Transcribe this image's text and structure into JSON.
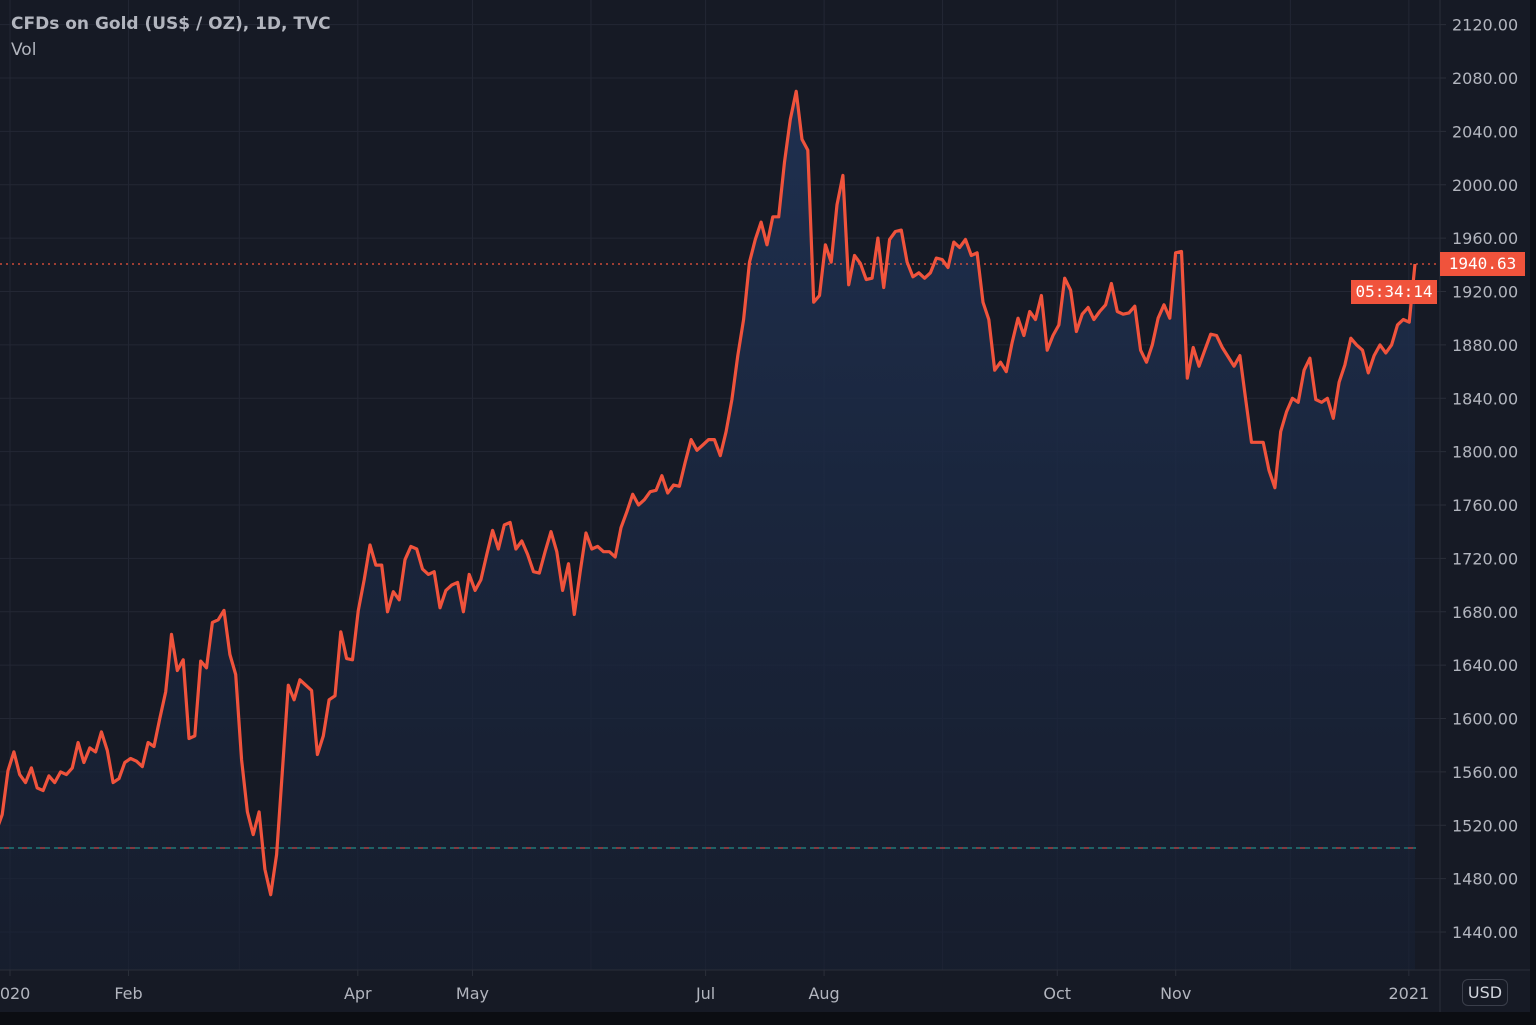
{
  "header": {
    "title": "CFDs on Gold (US$ / OZ), 1D, TVC",
    "indicator": "Vol",
    "currency_button": "USD"
  },
  "last_price": {
    "label": "1940.63",
    "countdown": "05:34:14"
  },
  "colors": {
    "line": "#f0533c",
    "background": "#161a25",
    "grid": "#232734",
    "text": "#b2b5be",
    "baseline_a": "#26a69a",
    "baseline_b": "#ef5350"
  },
  "chart_data": {
    "type": "area",
    "title": "CFDs on Gold (US$ / OZ), 1D, TVC",
    "x_range": [
      "2019-12-30",
      "2021-01-04"
    ],
    "x_ticks": [
      {
        "date": "2020-01-01",
        "label": "2020"
      },
      {
        "date": "2020-02-01",
        "label": "Feb"
      },
      {
        "date": "2020-04-01",
        "label": "Apr"
      },
      {
        "date": "2020-05-01",
        "label": "May"
      },
      {
        "date": "2020-07-01",
        "label": "Jul"
      },
      {
        "date": "2020-08-01",
        "label": "Aug"
      },
      {
        "date": "2020-10-01",
        "label": "Oct"
      },
      {
        "date": "2020-11-01",
        "label": "Nov"
      },
      {
        "date": "2021-01-01",
        "label": "2021"
      }
    ],
    "y_ticks": [
      "1440.00",
      "1480.00",
      "1520.00",
      "1560.00",
      "1600.00",
      "1640.00",
      "1680.00",
      "1720.00",
      "1760.00",
      "1800.00",
      "1840.00",
      "1880.00",
      "1920.00",
      "1960.00",
      "2000.00",
      "2040.00",
      "2080.00",
      "2120.00"
    ],
    "ylim": [
      1410,
      2135
    ],
    "y_axis_side": "right",
    "grid": true,
    "last_value": 1940.63,
    "baseline_value": 1503,
    "values": [
      1516,
      1528,
      1561,
      1575,
      1558,
      1552,
      1563,
      1548,
      1546,
      1557,
      1552,
      1560,
      1558,
      1563,
      1582,
      1567,
      1578,
      1575,
      1590,
      1576,
      1552,
      1555,
      1567,
      1570,
      1568,
      1564,
      1582,
      1579,
      1600,
      1620,
      1663,
      1636,
      1644,
      1585,
      1587,
      1643,
      1638,
      1672,
      1674,
      1681,
      1648,
      1633,
      1569,
      1530,
      1513,
      1530,
      1487,
      1468,
      1498,
      1561,
      1625,
      1614,
      1629,
      1625,
      1621,
      1573,
      1587,
      1614,
      1617,
      1665,
      1645,
      1644,
      1681,
      1704,
      1730,
      1715,
      1715,
      1680,
      1695,
      1689,
      1719,
      1729,
      1727,
      1712,
      1708,
      1710,
      1683,
      1696,
      1700,
      1702,
      1680,
      1708,
      1696,
      1704,
      1723,
      1741,
      1727,
      1745,
      1747,
      1727,
      1733,
      1723,
      1710,
      1709,
      1725,
      1740,
      1725,
      1696,
      1716,
      1678,
      1710,
      1739,
      1727,
      1729,
      1725,
      1725,
      1721,
      1743,
      1755,
      1768,
      1760,
      1764,
      1770,
      1771,
      1782,
      1769,
      1775,
      1774,
      1792,
      1809,
      1801,
      1805,
      1809,
      1809,
      1797,
      1815,
      1839,
      1872,
      1899,
      1942,
      1959,
      1972,
      1955,
      1976,
      1976,
      2017,
      2049,
      2070,
      2034,
      2026,
      1912,
      1917,
      1955,
      1942,
      1985,
      2007,
      1925,
      1947,
      1941,
      1929,
      1930,
      1960,
      1923,
      1959,
      1965,
      1966,
      1942,
      1931,
      1934,
      1930,
      1934,
      1945,
      1944,
      1938,
      1957,
      1953,
      1959,
      1947,
      1949,
      1912,
      1899,
      1861,
      1867,
      1860,
      1882,
      1900,
      1887,
      1905,
      1899,
      1917,
      1876,
      1887,
      1895,
      1930,
      1921,
      1890,
      1903,
      1908,
      1899,
      1905,
      1910,
      1926,
      1905,
      1903,
      1904,
      1909,
      1876,
      1867,
      1880,
      1900,
      1910,
      1900,
      1949,
      1950,
      1855,
      1878,
      1864,
      1876,
      1888,
      1887,
      1878,
      1871,
      1864,
      1872,
      1839,
      1807,
      1807,
      1807,
      1786,
      1773,
      1815,
      1830,
      1840,
      1837,
      1861,
      1870,
      1839,
      1837,
      1840,
      1825,
      1852,
      1865,
      1885,
      1880,
      1876,
      1859,
      1872,
      1880,
      1874,
      1880,
      1895,
      1899,
      1897,
      1940.63
    ]
  }
}
